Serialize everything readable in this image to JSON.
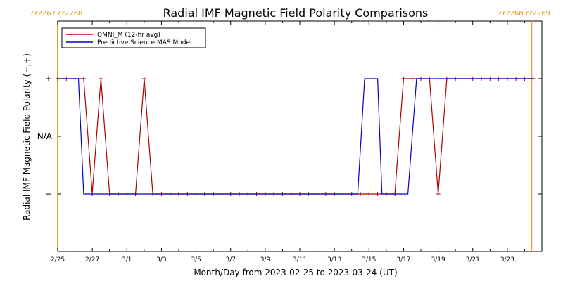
{
  "chart_data": {
    "type": "line",
    "title": "Radial IMF Magnetic Field Polarity Comparisons",
    "xlabel": "Month/Day from 2023-02-25 to 2023-03-24 (UT)",
    "ylabel": "Radial IMF Magnetic Field Polarity (−,+)",
    "x_axis": {
      "min": 0,
      "max": 28,
      "unit": "days since 2023-02-25 00:00 UT",
      "tick_positions": [
        0,
        2,
        4,
        6,
        8,
        10,
        12,
        14,
        16,
        18,
        20,
        22,
        24,
        26
      ],
      "tick_labels": [
        "2/25",
        "2/27",
        "3/1",
        "3/3",
        "3/5",
        "3/7",
        "3/9",
        "3/11",
        "3/13",
        "3/15",
        "3/17",
        "3/19",
        "3/21",
        "3/23"
      ]
    },
    "y_axis": {
      "min": -2,
      "max": 2,
      "tick_values": [
        1,
        0,
        -1
      ],
      "tick_labels": [
        "+",
        "N/A",
        "−"
      ]
    },
    "carrington_markers": [
      {
        "x": 0,
        "labels": [
          "cr2267",
          "cr2268"
        ],
        "side": "left"
      },
      {
        "x": 27.4,
        "labels": [
          "cr2268",
          "cr2269"
        ],
        "side": "right"
      }
    ],
    "legend": {
      "position": "top-left"
    },
    "series": [
      {
        "name": "OMNI_M (12-hr avg)",
        "color": "#b00000",
        "marker": "+",
        "x": [
          0,
          0.5,
          1,
          1.5,
          2,
          2.5,
          3,
          3.5,
          4,
          4.5,
          5,
          5.5,
          6,
          6.5,
          7,
          7.5,
          8,
          8.5,
          9,
          9.5,
          10,
          10.5,
          11,
          11.5,
          12,
          12.5,
          13,
          13.5,
          14,
          14.5,
          15,
          15.5,
          16,
          16.5,
          17,
          17.5,
          18,
          18.5,
          19,
          19.5,
          20,
          20.5,
          21,
          21.5,
          22,
          22.5,
          23,
          23.5,
          24,
          24.5,
          25,
          25.5,
          26,
          26.5,
          27,
          27.5
        ],
        "values": [
          1,
          1,
          1,
          1,
          -1,
          1,
          -1,
          -1,
          -1,
          -1,
          1,
          -1,
          -1,
          -1,
          -1,
          -1,
          -1,
          -1,
          -1,
          -1,
          -1,
          -1,
          -1,
          -1,
          -1,
          -1,
          -1,
          -1,
          -1,
          -1,
          -1,
          -1,
          -1,
          -1,
          -1,
          -1,
          -1,
          -1,
          -1,
          -1,
          1,
          1,
          1,
          1,
          -1,
          1,
          1,
          1,
          1,
          1,
          1,
          1,
          1,
          1,
          1,
          1
        ]
      },
      {
        "name": "Predictive Science MAS Model",
        "color": "#0000c8",
        "x": [
          0,
          1,
          1.2,
          1.5,
          17,
          17.35,
          17.75,
          18.5,
          18.75,
          20,
          20.25,
          20.75,
          21,
          27.5
        ],
        "values": [
          1,
          1,
          1,
          -1,
          -1,
          -1,
          1,
          1,
          -1,
          -1,
          -1,
          1,
          1,
          1
        ]
      }
    ]
  }
}
